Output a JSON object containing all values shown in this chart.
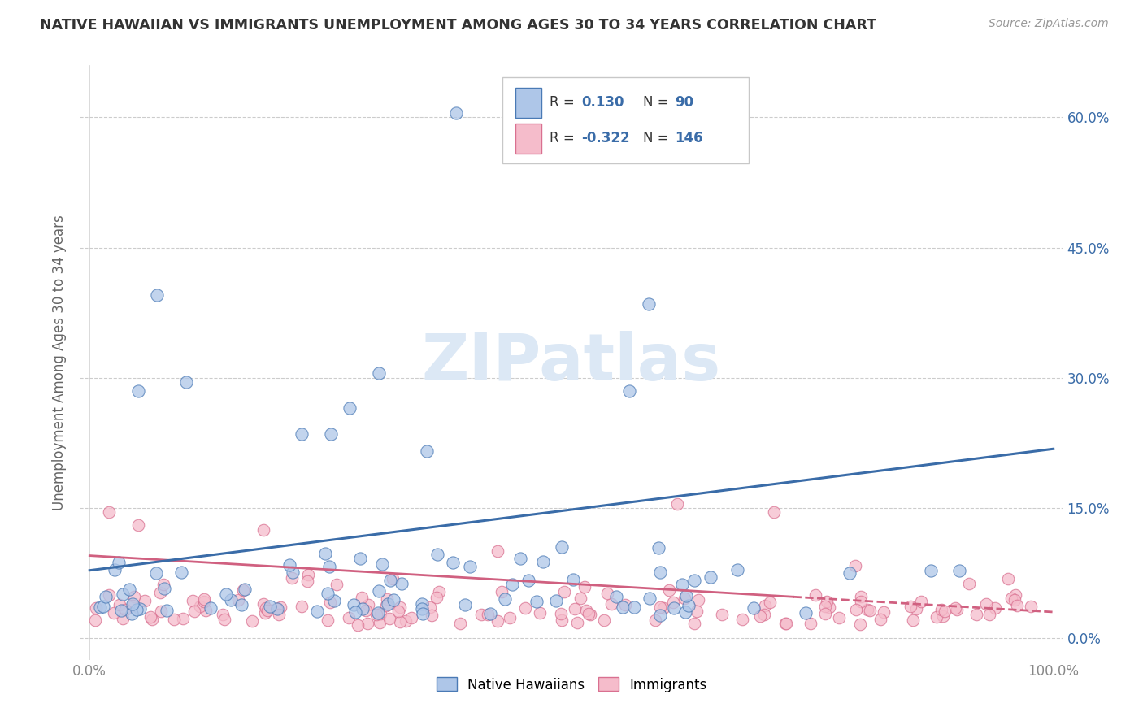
{
  "title": "NATIVE HAWAIIAN VS IMMIGRANTS UNEMPLOYMENT AMONG AGES 30 TO 34 YEARS CORRELATION CHART",
  "source": "Source: ZipAtlas.com",
  "ylabel": "Unemployment Among Ages 30 to 34 years",
  "xlim": [
    -0.01,
    1.01
  ],
  "ylim": [
    -0.025,
    0.66
  ],
  "yticks": [
    0.0,
    0.15,
    0.3,
    0.45,
    0.6
  ],
  "yticklabels_right": [
    "0.0%",
    "15.0%",
    "30.0%",
    "45.0%",
    "60.0%"
  ],
  "xtick_left_label": "0.0%",
  "xtick_right_label": "100.0%",
  "legend_r1_text": "R = ",
  "legend_r1_val": " 0.130",
  "legend_n1_text": "N = ",
  "legend_n1_val": " 90",
  "legend_r2_text": "R = ",
  "legend_r2_val": "-0.322",
  "legend_n2_text": "N = ",
  "legend_n2_val": "146",
  "blue_fill": "#aec6e8",
  "blue_edge": "#4a7ab5",
  "blue_line": "#3a6ca8",
  "pink_fill": "#f5bccb",
  "pink_edge": "#d97090",
  "pink_line": "#d06080",
  "r_color": "#3a6ca8",
  "watermark_color": "#dce8f5",
  "background_color": "#ffffff",
  "grid_color": "#cccccc",
  "native_n": 90,
  "immigrant_n": 146,
  "native_r": 0.13,
  "immigrant_r": -0.322,
  "title_color": "#333333",
  "source_color": "#999999",
  "tick_color": "#888888",
  "ylabel_color": "#666666"
}
